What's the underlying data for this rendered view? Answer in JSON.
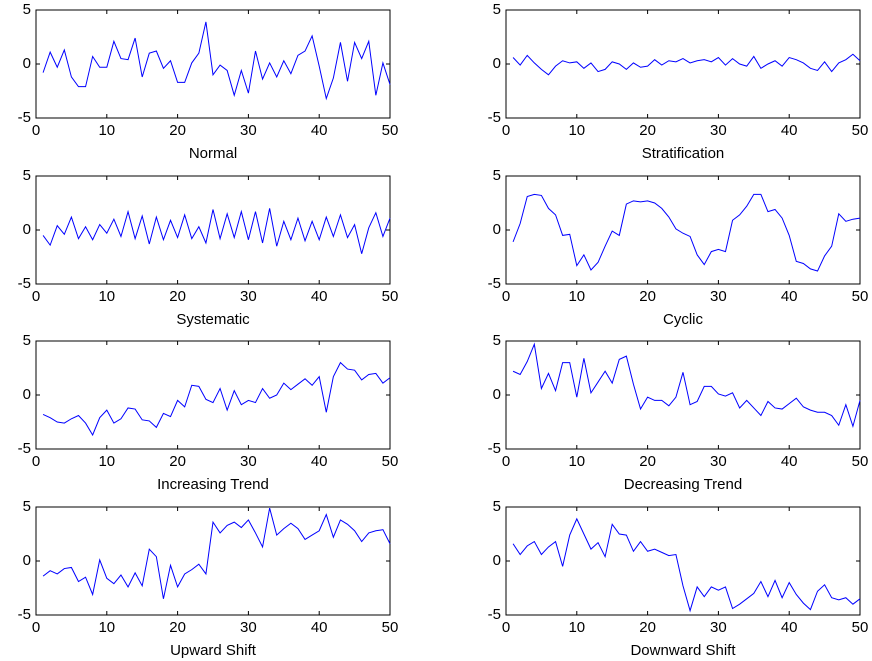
{
  "chart_data": [
    {
      "type": "line",
      "xlabel": "Normal",
      "xlim": [
        0,
        50
      ],
      "xticks": [
        0,
        10,
        20,
        30,
        40,
        50
      ],
      "ylim": [
        -5,
        5
      ],
      "yticks": [
        -5,
        0,
        5
      ],
      "x": [
        1,
        2,
        3,
        4,
        5,
        6,
        7,
        8,
        9,
        10,
        11,
        12,
        13,
        14,
        15,
        16,
        17,
        18,
        19,
        20,
        21,
        22,
        23,
        24,
        25,
        26,
        27,
        28,
        29,
        30,
        31,
        32,
        33,
        34,
        35,
        36,
        37,
        38,
        39,
        40,
        41,
        42,
        43,
        44,
        45,
        46,
        47,
        48,
        49,
        50
      ],
      "color": "#0000ff",
      "values": [
        -0.8,
        1.1,
        -0.3,
        1.3,
        -1.2,
        -2.1,
        -2.1,
        0.7,
        -0.3,
        -0.3,
        2.1,
        0.5,
        0.4,
        2.4,
        -1.2,
        1.0,
        1.2,
        -0.4,
        0.3,
        -1.7,
        -1.7,
        0.1,
        1.0,
        3.9,
        -1.0,
        -0.1,
        -0.6,
        -2.9,
        -0.6,
        -2.7,
        1.2,
        -1.4,
        0.1,
        -1.2,
        0.3,
        -0.9,
        0.8,
        1.2,
        2.6,
        -0.2,
        -3.2,
        -1.3,
        2.0,
        -1.6,
        2.0,
        0.5,
        2.1,
        -2.9,
        0.1,
        -1.9
      ]
    },
    {
      "type": "line",
      "xlabel": "Stratification",
      "xlim": [
        0,
        50
      ],
      "xticks": [
        0,
        10,
        20,
        30,
        40,
        50
      ],
      "ylim": [
        -5,
        5
      ],
      "yticks": [
        -5,
        0,
        5
      ],
      "x": [
        1,
        2,
        3,
        4,
        5,
        6,
        7,
        8,
        9,
        10,
        11,
        12,
        13,
        14,
        15,
        16,
        17,
        18,
        19,
        20,
        21,
        22,
        23,
        24,
        25,
        26,
        27,
        28,
        29,
        30,
        31,
        32,
        33,
        34,
        35,
        36,
        37,
        38,
        39,
        40,
        41,
        42,
        43,
        44,
        45,
        46,
        47,
        48,
        49,
        50
      ],
      "color": "#0000ff",
      "values": [
        0.6,
        -0.1,
        0.8,
        0.1,
        -0.5,
        -1.0,
        -0.2,
        0.3,
        0.1,
        0.2,
        -0.4,
        0.1,
        -0.7,
        -0.5,
        0.2,
        0.0,
        -0.5,
        0.1,
        -0.3,
        -0.2,
        0.4,
        -0.1,
        0.3,
        0.2,
        0.5,
        0.1,
        0.3,
        0.4,
        0.2,
        0.6,
        -0.1,
        0.5,
        0.0,
        -0.2,
        0.7,
        -0.4,
        0.0,
        0.3,
        -0.2,
        0.6,
        0.4,
        0.1,
        -0.4,
        -0.6,
        0.2,
        -0.7,
        0.1,
        0.4,
        0.9,
        0.3
      ]
    },
    {
      "type": "line",
      "xlabel": "Systematic",
      "xlim": [
        0,
        50
      ],
      "xticks": [
        0,
        10,
        20,
        30,
        40,
        50
      ],
      "ylim": [
        -5,
        5
      ],
      "yticks": [
        -5,
        0,
        5
      ],
      "x": [
        1,
        2,
        3,
        4,
        5,
        6,
        7,
        8,
        9,
        10,
        11,
        12,
        13,
        14,
        15,
        16,
        17,
        18,
        19,
        20,
        21,
        22,
        23,
        24,
        25,
        26,
        27,
        28,
        29,
        30,
        31,
        32,
        33,
        34,
        35,
        36,
        37,
        38,
        39,
        40,
        41,
        42,
        43,
        44,
        45,
        46,
        47,
        48,
        49,
        50
      ],
      "color": "#0000ff",
      "values": [
        -0.5,
        -1.4,
        0.4,
        -0.4,
        1.2,
        -0.8,
        0.3,
        -0.9,
        0.5,
        -0.3,
        1.0,
        -0.6,
        1.7,
        -0.8,
        1.3,
        -1.3,
        1.2,
        -0.9,
        0.9,
        -0.7,
        1.4,
        -0.8,
        0.3,
        -1.2,
        1.9,
        -0.8,
        1.5,
        -0.7,
        1.7,
        -0.9,
        1.7,
        -1.2,
        2.0,
        -1.5,
        0.8,
        -0.9,
        1.1,
        -1.0,
        0.8,
        -0.9,
        1.2,
        -0.6,
        1.4,
        -0.7,
        0.5,
        -2.2,
        0.2,
        1.6,
        -0.6,
        1.1
      ]
    },
    {
      "type": "line",
      "xlabel": "Cyclic",
      "xlim": [
        0,
        50
      ],
      "xticks": [
        0,
        10,
        20,
        30,
        40,
        50
      ],
      "ylim": [
        -5,
        5
      ],
      "yticks": [
        -5,
        0,
        5
      ],
      "x": [
        1,
        2,
        3,
        4,
        5,
        6,
        7,
        8,
        9,
        10,
        11,
        12,
        13,
        14,
        15,
        16,
        17,
        18,
        19,
        20,
        21,
        22,
        23,
        24,
        25,
        26,
        27,
        28,
        29,
        30,
        31,
        32,
        33,
        34,
        35,
        36,
        37,
        38,
        39,
        40,
        41,
        42,
        43,
        44,
        45,
        46,
        47,
        48,
        49,
        50
      ],
      "color": "#0000ff",
      "values": [
        -1.1,
        0.6,
        3.1,
        3.3,
        3.2,
        2.0,
        1.4,
        -0.5,
        -0.4,
        -3.3,
        -2.3,
        -3.7,
        -3.0,
        -1.5,
        -0.1,
        -0.5,
        2.4,
        2.7,
        2.6,
        2.7,
        2.5,
        2.0,
        1.2,
        0.1,
        -0.3,
        -0.6,
        -2.3,
        -3.2,
        -2.0,
        -1.8,
        -2.0,
        0.9,
        1.4,
        2.2,
        3.3,
        3.3,
        1.7,
        1.9,
        1.1,
        -0.5,
        -2.9,
        -3.1,
        -3.6,
        -3.8,
        -2.4,
        -1.5,
        1.5,
        0.8,
        1.0,
        1.1
      ]
    },
    {
      "type": "line",
      "xlabel": "Increasing Trend",
      "xlim": [
        0,
        50
      ],
      "xticks": [
        0,
        10,
        20,
        30,
        40,
        50
      ],
      "ylim": [
        -5,
        5
      ],
      "yticks": [
        -5,
        0,
        5
      ],
      "x": [
        1,
        2,
        3,
        4,
        5,
        6,
        7,
        8,
        9,
        10,
        11,
        12,
        13,
        14,
        15,
        16,
        17,
        18,
        19,
        20,
        21,
        22,
        23,
        24,
        25,
        26,
        27,
        28,
        29,
        30,
        31,
        32,
        33,
        34,
        35,
        36,
        37,
        38,
        39,
        40,
        41,
        42,
        43,
        44,
        45,
        46,
        47,
        48,
        49,
        50
      ],
      "color": "#0000ff",
      "values": [
        -1.8,
        -2.1,
        -2.5,
        -2.6,
        -2.2,
        -1.9,
        -2.6,
        -3.7,
        -2.1,
        -1.4,
        -2.6,
        -2.2,
        -1.2,
        -1.3,
        -2.3,
        -2.4,
        -3.0,
        -1.7,
        -2.0,
        -0.5,
        -1.1,
        0.9,
        0.8,
        -0.4,
        -0.7,
        0.6,
        -1.4,
        0.4,
        -0.9,
        -0.5,
        -0.7,
        0.6,
        -0.3,
        0.0,
        1.1,
        0.5,
        1.0,
        1.5,
        0.9,
        1.7,
        -1.6,
        1.7,
        3.0,
        2.4,
        2.3,
        1.4,
        1.9,
        2.0,
        1.1,
        1.6
      ]
    },
    {
      "type": "line",
      "xlabel": "Decreasing Trend",
      "xlim": [
        0,
        50
      ],
      "xticks": [
        0,
        10,
        20,
        30,
        40,
        50
      ],
      "ylim": [
        -5,
        5
      ],
      "yticks": [
        -5,
        0,
        5
      ],
      "x": [
        1,
        2,
        3,
        4,
        5,
        6,
        7,
        8,
        9,
        10,
        11,
        12,
        13,
        14,
        15,
        16,
        17,
        18,
        19,
        20,
        21,
        22,
        23,
        24,
        25,
        26,
        27,
        28,
        29,
        30,
        31,
        32,
        33,
        34,
        35,
        36,
        37,
        38,
        39,
        40,
        41,
        42,
        43,
        44,
        45,
        46,
        47,
        48,
        49,
        50
      ],
      "color": "#0000ff",
      "values": [
        2.2,
        1.9,
        3.1,
        4.7,
        0.6,
        2.0,
        0.4,
        3.0,
        3.0,
        -0.2,
        3.4,
        0.2,
        1.2,
        2.2,
        1.1,
        3.3,
        3.6,
        1.0,
        -1.3,
        -0.2,
        -0.5,
        -0.5,
        -1.0,
        -0.2,
        2.1,
        -0.9,
        -0.6,
        0.8,
        0.8,
        0.1,
        -0.1,
        0.2,
        -1.2,
        -0.5,
        -1.2,
        -1.9,
        -0.6,
        -1.2,
        -1.3,
        -0.8,
        -0.3,
        -1.1,
        -1.4,
        -1.6,
        -1.6,
        -1.9,
        -2.8,
        -0.9,
        -2.9,
        -0.5
      ]
    },
    {
      "type": "line",
      "xlabel": "Upward Shift",
      "xlim": [
        0,
        50
      ],
      "xticks": [
        0,
        10,
        20,
        30,
        40,
        50
      ],
      "ylim": [
        -5,
        5
      ],
      "yticks": [
        -5,
        0,
        5
      ],
      "x": [
        1,
        2,
        3,
        4,
        5,
        6,
        7,
        8,
        9,
        10,
        11,
        12,
        13,
        14,
        15,
        16,
        17,
        18,
        19,
        20,
        21,
        22,
        23,
        24,
        25,
        26,
        27,
        28,
        29,
        30,
        31,
        32,
        33,
        34,
        35,
        36,
        37,
        38,
        39,
        40,
        41,
        42,
        43,
        44,
        45,
        46,
        47,
        48,
        49,
        50
      ],
      "color": "#0000ff",
      "values": [
        -1.4,
        -0.9,
        -1.2,
        -0.7,
        -0.6,
        -1.9,
        -1.5,
        -3.1,
        0.1,
        -1.6,
        -2.1,
        -1.3,
        -2.4,
        -1.1,
        -2.3,
        1.1,
        0.4,
        -3.5,
        -0.4,
        -2.4,
        -1.2,
        -0.8,
        -0.3,
        -1.2,
        3.6,
        2.6,
        3.3,
        3.6,
        3.1,
        3.8,
        2.6,
        1.3,
        4.9,
        2.4,
        3.0,
        3.5,
        3.0,
        2.0,
        2.4,
        2.8,
        4.3,
        2.2,
        3.8,
        3.4,
        2.8,
        1.8,
        2.6,
        2.8,
        2.9,
        1.6
      ]
    },
    {
      "type": "line",
      "xlabel": "Downward Shift",
      "xlim": [
        0,
        50
      ],
      "xticks": [
        0,
        10,
        20,
        30,
        40,
        50
      ],
      "ylim": [
        -5,
        5
      ],
      "yticks": [
        -5,
        0,
        5
      ],
      "x": [
        1,
        2,
        3,
        4,
        5,
        6,
        7,
        8,
        9,
        10,
        11,
        12,
        13,
        14,
        15,
        16,
        17,
        18,
        19,
        20,
        21,
        22,
        23,
        24,
        25,
        26,
        27,
        28,
        29,
        30,
        31,
        32,
        33,
        34,
        35,
        36,
        37,
        38,
        39,
        40,
        41,
        42,
        43,
        44,
        45,
        46,
        47,
        48,
        49,
        50
      ],
      "color": "#0000ff",
      "values": [
        1.6,
        0.6,
        1.4,
        1.8,
        0.6,
        1.3,
        1.8,
        -0.5,
        2.4,
        3.9,
        2.5,
        1.1,
        1.7,
        0.4,
        3.4,
        2.5,
        2.4,
        0.9,
        1.8,
        0.9,
        1.1,
        0.8,
        0.5,
        0.6,
        -2.3,
        -4.6,
        -2.4,
        -3.3,
        -2.4,
        -2.7,
        -2.4,
        -4.4,
        -4.0,
        -3.5,
        -3.0,
        -1.9,
        -3.3,
        -1.8,
        -3.4,
        -2.0,
        -3.1,
        -3.9,
        -4.5,
        -2.8,
        -2.2,
        -3.4,
        -3.6,
        -3.4,
        -4.0,
        -3.5
      ]
    }
  ]
}
